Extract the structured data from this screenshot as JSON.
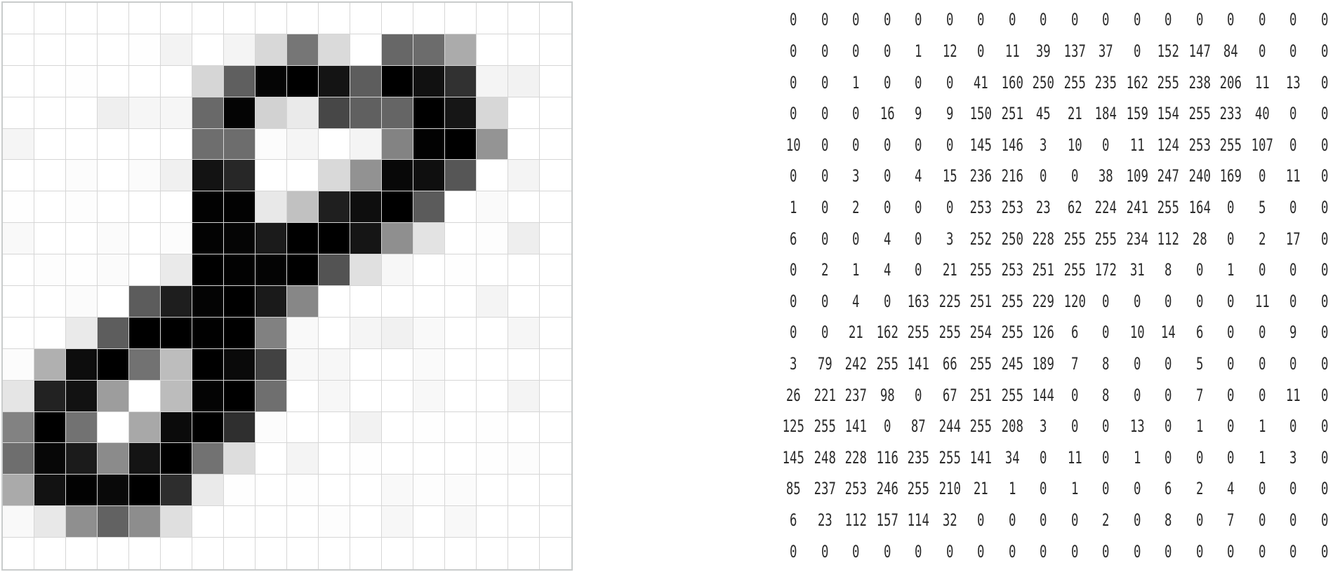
{
  "grid_style": {
    "rows": 18,
    "cols": 18,
    "line_color": "#d6d6d6",
    "border_color": "#c9cccc",
    "text_color": "#2a2a2a"
  },
  "matrix": [
    [
      0,
      0,
      0,
      0,
      0,
      0,
      0,
      0,
      0,
      0,
      0,
      0,
      0,
      0,
      0,
      0,
      0,
      0
    ],
    [
      0,
      0,
      0,
      0,
      1,
      12,
      0,
      11,
      39,
      137,
      37,
      0,
      152,
      147,
      84,
      0,
      0,
      0
    ],
    [
      0,
      0,
      1,
      0,
      0,
      0,
      41,
      160,
      250,
      255,
      235,
      162,
      255,
      238,
      206,
      11,
      13,
      0
    ],
    [
      0,
      0,
      0,
      16,
      9,
      9,
      150,
      251,
      45,
      21,
      184,
      159,
      154,
      255,
      233,
      40,
      0,
      0
    ],
    [
      10,
      0,
      0,
      0,
      0,
      0,
      145,
      146,
      3,
      10,
      0,
      11,
      124,
      253,
      255,
      107,
      0,
      0
    ],
    [
      0,
      0,
      3,
      0,
      4,
      15,
      236,
      216,
      0,
      0,
      38,
      109,
      247,
      240,
      169,
      0,
      11,
      0
    ],
    [
      1,
      0,
      2,
      0,
      0,
      0,
      253,
      253,
      23,
      62,
      224,
      241,
      255,
      164,
      0,
      5,
      0,
      0
    ],
    [
      6,
      0,
      0,
      4,
      0,
      3,
      252,
      250,
      228,
      255,
      255,
      234,
      112,
      28,
      0,
      2,
      17,
      0
    ],
    [
      0,
      2,
      1,
      4,
      0,
      21,
      255,
      253,
      251,
      255,
      172,
      31,
      8,
      0,
      1,
      0,
      0,
      0
    ],
    [
      0,
      0,
      4,
      0,
      163,
      225,
      251,
      255,
      229,
      120,
      0,
      0,
      0,
      0,
      0,
      11,
      0,
      0
    ],
    [
      0,
      0,
      21,
      162,
      255,
      255,
      254,
      255,
      126,
      6,
      0,
      10,
      14,
      6,
      0,
      0,
      9,
      0
    ],
    [
      3,
      79,
      242,
      255,
      141,
      66,
      255,
      245,
      189,
      7,
      8,
      0,
      0,
      5,
      0,
      0,
      0,
      0
    ],
    [
      26,
      221,
      237,
      98,
      0,
      67,
      251,
      255,
      144,
      0,
      8,
      0,
      0,
      7,
      0,
      0,
      11,
      0
    ],
    [
      125,
      255,
      141,
      0,
      87,
      244,
      255,
      208,
      3,
      0,
      0,
      13,
      0,
      1,
      0,
      1,
      0,
      0
    ],
    [
      145,
      248,
      228,
      116,
      235,
      255,
      141,
      34,
      0,
      11,
      0,
      1,
      0,
      0,
      0,
      1,
      3,
      0
    ],
    [
      85,
      237,
      253,
      246,
      255,
      210,
      21,
      1,
      0,
      1,
      0,
      0,
      6,
      2,
      4,
      0,
      0,
      0
    ],
    [
      6,
      23,
      112,
      157,
      114,
      32,
      0,
      0,
      0,
      0,
      2,
      0,
      8,
      0,
      7,
      0,
      0,
      0
    ],
    [
      0,
      0,
      0,
      0,
      0,
      0,
      0,
      0,
      0,
      0,
      0,
      0,
      0,
      0,
      0,
      0,
      0,
      0
    ]
  ]
}
